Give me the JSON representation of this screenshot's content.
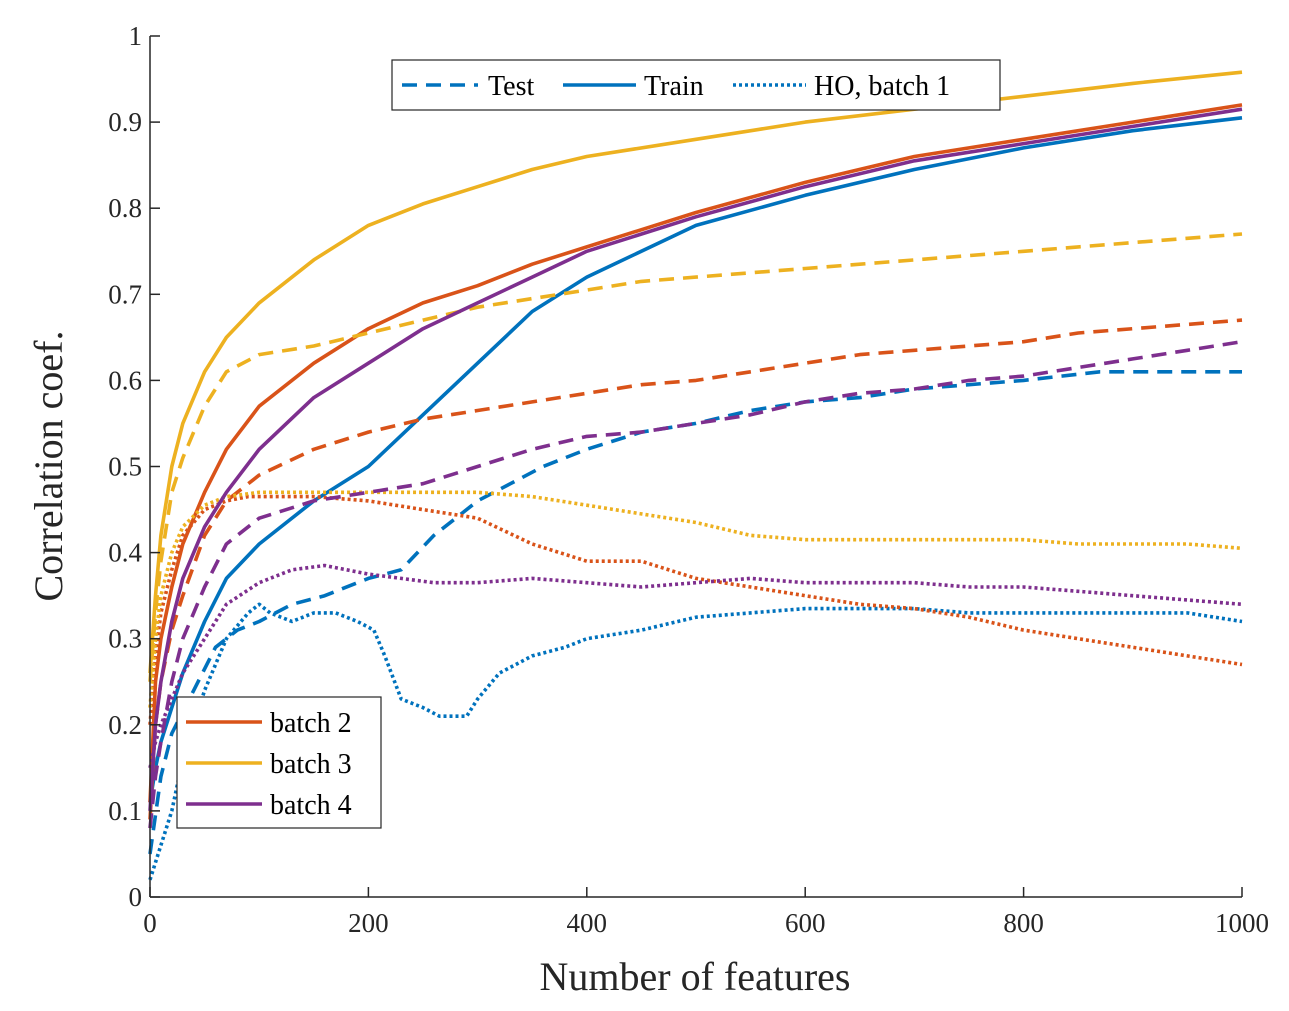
{
  "chart_data": {
    "type": "line",
    "title": "",
    "xlabel": "Number of features",
    "ylabel": "Correlation coef.",
    "xlim": [
      0,
      1000
    ],
    "ylim": [
      0,
      1
    ],
    "xticks": [
      0,
      200,
      400,
      600,
      800,
      1000
    ],
    "yticks": [
      0,
      0.1,
      0.2,
      0.3,
      0.4,
      0.5,
      0.6,
      0.7,
      0.8,
      0.9,
      1
    ],
    "ytick_labels": [
      "0",
      "0.1",
      "0.2",
      "0.3",
      "0.4",
      "0.5",
      "0.6",
      "0.7",
      "0.8",
      "0.9",
      "1"
    ],
    "grid": false,
    "style_legend": {
      "placement": "top-center",
      "entries": [
        {
          "label": "Test",
          "style": "dashed"
        },
        {
          "label": "Train",
          "style": "solid"
        },
        {
          "label": "HO, batch 1",
          "style": "dotted"
        }
      ]
    },
    "color_legend": {
      "placement": "bottom-left",
      "entries": [
        {
          "label": "batch 2",
          "color": "#D95319"
        },
        {
          "label": "batch 3",
          "color": "#EDB120"
        },
        {
          "label": "batch 4",
          "color": "#7E2F8E"
        }
      ]
    },
    "series": [
      {
        "batch": "1",
        "style": "solid",
        "color": "#0072BD",
        "x": [
          0,
          5,
          10,
          20,
          30,
          50,
          70,
          100,
          150,
          200,
          250,
          300,
          350,
          400,
          500,
          600,
          700,
          800,
          900,
          1000
        ],
        "y": [
          0.11,
          0.15,
          0.18,
          0.22,
          0.26,
          0.32,
          0.37,
          0.41,
          0.46,
          0.5,
          0.56,
          0.62,
          0.68,
          0.72,
          0.78,
          0.815,
          0.845,
          0.87,
          0.89,
          0.905
        ]
      },
      {
        "batch": "1",
        "style": "dashed",
        "color": "#0072BD",
        "x": [
          0,
          10,
          20,
          40,
          60,
          80,
          100,
          130,
          160,
          200,
          230,
          260,
          280,
          300,
          330,
          360,
          400,
          450,
          500,
          550,
          600,
          650,
          700,
          800,
          870,
          900,
          950,
          1000
        ],
        "y": [
          0.05,
          0.14,
          0.19,
          0.24,
          0.29,
          0.31,
          0.32,
          0.34,
          0.35,
          0.37,
          0.38,
          0.42,
          0.44,
          0.46,
          0.48,
          0.5,
          0.52,
          0.54,
          0.55,
          0.565,
          0.575,
          0.58,
          0.59,
          0.6,
          0.61,
          0.61,
          0.61,
          0.61
        ]
      },
      {
        "batch": "1",
        "style": "dotted",
        "color": "#0072BD",
        "x": [
          0,
          10,
          20,
          30,
          50,
          70,
          90,
          100,
          110,
          130,
          150,
          170,
          190,
          205,
          215,
          230,
          250,
          265,
          280,
          290,
          300,
          320,
          350,
          380,
          400,
          450,
          500,
          550,
          600,
          650,
          700,
          750,
          800,
          850,
          900,
          950,
          1000
        ],
        "y": [
          0.02,
          0.06,
          0.1,
          0.16,
          0.24,
          0.3,
          0.33,
          0.34,
          0.33,
          0.32,
          0.33,
          0.33,
          0.32,
          0.31,
          0.28,
          0.23,
          0.22,
          0.21,
          0.21,
          0.21,
          0.23,
          0.26,
          0.28,
          0.29,
          0.3,
          0.31,
          0.325,
          0.33,
          0.335,
          0.335,
          0.335,
          0.33,
          0.33,
          0.33,
          0.33,
          0.33,
          0.32
        ]
      },
      {
        "batch": "2",
        "style": "solid",
        "color": "#D95319",
        "x": [
          0,
          5,
          10,
          20,
          30,
          50,
          70,
          100,
          150,
          200,
          250,
          300,
          350,
          400,
          500,
          600,
          700,
          800,
          900,
          1000
        ],
        "y": [
          0.11,
          0.25,
          0.3,
          0.36,
          0.41,
          0.47,
          0.52,
          0.57,
          0.62,
          0.66,
          0.69,
          0.71,
          0.735,
          0.755,
          0.795,
          0.83,
          0.86,
          0.88,
          0.9,
          0.92
        ]
      },
      {
        "batch": "2",
        "style": "dashed",
        "color": "#D95319",
        "x": [
          0,
          5,
          10,
          20,
          30,
          50,
          70,
          100,
          150,
          200,
          250,
          300,
          350,
          400,
          450,
          500,
          550,
          600,
          650,
          700,
          750,
          800,
          850,
          900,
          950,
          1000
        ],
        "y": [
          0.09,
          0.2,
          0.25,
          0.31,
          0.35,
          0.42,
          0.46,
          0.49,
          0.52,
          0.54,
          0.555,
          0.565,
          0.575,
          0.585,
          0.595,
          0.6,
          0.61,
          0.62,
          0.63,
          0.635,
          0.64,
          0.645,
          0.655,
          0.66,
          0.665,
          0.67
        ]
      },
      {
        "batch": "2",
        "style": "dotted",
        "color": "#D95319",
        "x": [
          0,
          5,
          10,
          20,
          30,
          50,
          70,
          90,
          120,
          150,
          200,
          250,
          300,
          350,
          400,
          450,
          500,
          550,
          600,
          650,
          700,
          750,
          800,
          850,
          900,
          950,
          1000
        ],
        "y": [
          0.2,
          0.28,
          0.33,
          0.38,
          0.42,
          0.45,
          0.46,
          0.465,
          0.465,
          0.465,
          0.46,
          0.45,
          0.44,
          0.41,
          0.39,
          0.39,
          0.37,
          0.36,
          0.35,
          0.34,
          0.335,
          0.325,
          0.31,
          0.3,
          0.29,
          0.28,
          0.27
        ]
      },
      {
        "batch": "3",
        "style": "solid",
        "color": "#EDB120",
        "x": [
          0,
          5,
          10,
          20,
          30,
          50,
          70,
          100,
          150,
          200,
          250,
          300,
          350,
          400,
          500,
          600,
          700,
          800,
          900,
          1000
        ],
        "y": [
          0.26,
          0.35,
          0.42,
          0.5,
          0.55,
          0.61,
          0.65,
          0.69,
          0.74,
          0.78,
          0.805,
          0.825,
          0.845,
          0.86,
          0.88,
          0.9,
          0.915,
          0.93,
          0.945,
          0.958
        ]
      },
      {
        "batch": "3",
        "style": "dashed",
        "color": "#EDB120",
        "x": [
          0,
          5,
          10,
          20,
          30,
          50,
          70,
          100,
          150,
          200,
          250,
          300,
          350,
          400,
          450,
          500,
          550,
          600,
          650,
          700,
          750,
          800,
          850,
          900,
          950,
          1000
        ],
        "y": [
          0.25,
          0.33,
          0.39,
          0.47,
          0.51,
          0.57,
          0.61,
          0.63,
          0.64,
          0.655,
          0.67,
          0.685,
          0.695,
          0.705,
          0.715,
          0.72,
          0.725,
          0.73,
          0.735,
          0.74,
          0.745,
          0.75,
          0.755,
          0.76,
          0.765,
          0.77
        ]
      },
      {
        "batch": "3",
        "style": "dotted",
        "color": "#EDB120",
        "x": [
          0,
          5,
          10,
          20,
          30,
          50,
          70,
          100,
          130,
          160,
          200,
          250,
          300,
          350,
          400,
          450,
          500,
          550,
          600,
          650,
          700,
          750,
          800,
          850,
          900,
          950,
          1000
        ],
        "y": [
          0.22,
          0.3,
          0.35,
          0.4,
          0.43,
          0.455,
          0.465,
          0.47,
          0.47,
          0.47,
          0.47,
          0.47,
          0.47,
          0.465,
          0.455,
          0.445,
          0.435,
          0.42,
          0.415,
          0.415,
          0.415,
          0.415,
          0.415,
          0.41,
          0.41,
          0.41,
          0.405
        ]
      },
      {
        "batch": "4",
        "style": "solid",
        "color": "#7E2F8E",
        "x": [
          0,
          5,
          10,
          20,
          30,
          50,
          70,
          100,
          150,
          200,
          250,
          300,
          350,
          400,
          500,
          600,
          700,
          800,
          900,
          1000
        ],
        "y": [
          0.1,
          0.2,
          0.25,
          0.32,
          0.37,
          0.43,
          0.47,
          0.52,
          0.58,
          0.62,
          0.66,
          0.69,
          0.72,
          0.75,
          0.79,
          0.825,
          0.855,
          0.875,
          0.895,
          0.915
        ]
      },
      {
        "batch": "4",
        "style": "dashed",
        "color": "#7E2F8E",
        "x": [
          0,
          5,
          10,
          20,
          30,
          50,
          70,
          100,
          150,
          200,
          250,
          300,
          350,
          400,
          450,
          500,
          550,
          600,
          650,
          700,
          750,
          800,
          850,
          900,
          950,
          1000
        ],
        "y": [
          0.08,
          0.14,
          0.18,
          0.25,
          0.3,
          0.36,
          0.41,
          0.44,
          0.46,
          0.47,
          0.48,
          0.5,
          0.52,
          0.535,
          0.54,
          0.55,
          0.56,
          0.575,
          0.585,
          0.59,
          0.6,
          0.605,
          0.615,
          0.625,
          0.635,
          0.645
        ]
      },
      {
        "batch": "4",
        "style": "dotted",
        "color": "#7E2F8E",
        "x": [
          0,
          5,
          10,
          20,
          30,
          50,
          70,
          100,
          130,
          160,
          200,
          230,
          260,
          300,
          350,
          400,
          450,
          500,
          550,
          600,
          650,
          700,
          750,
          800,
          850,
          900,
          950,
          1000
        ],
        "y": [
          0.15,
          0.18,
          0.2,
          0.23,
          0.26,
          0.3,
          0.34,
          0.365,
          0.38,
          0.385,
          0.375,
          0.37,
          0.365,
          0.365,
          0.37,
          0.365,
          0.36,
          0.365,
          0.37,
          0.365,
          0.365,
          0.365,
          0.36,
          0.36,
          0.355,
          0.35,
          0.345,
          0.34
        ]
      }
    ]
  }
}
